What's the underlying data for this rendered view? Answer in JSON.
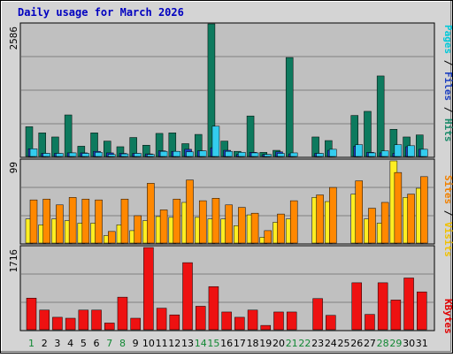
{
  "title": "Daily usage for March 2026",
  "legends": {
    "top": [
      {
        "text": "Pages",
        "color": "#00c8d8"
      },
      {
        "text": " / ",
        "color": "#000000"
      },
      {
        "text": "Files",
        "color": "#1c3fbf"
      },
      {
        "text": " / ",
        "color": "#000000"
      },
      {
        "text": "Hits",
        "color": "#1a8a6a"
      }
    ],
    "middle": [
      {
        "text": "Sites",
        "color": "#f08000"
      },
      {
        "text": " / ",
        "color": "#000000"
      },
      {
        "text": "Visits",
        "color": "#f0c000"
      }
    ],
    "bottom": [
      {
        "text": "KBytes",
        "color": "#e00000"
      }
    ]
  },
  "colors": {
    "hits": "#0d7a5e",
    "files": "#1c3fbf",
    "pages": "#33ccee",
    "visits": "#ffee22",
    "sites": "#ff8800",
    "kbytes": "#ee1111",
    "weekday_label": "#000000",
    "weekend_label": "#118833",
    "title": "#0000c0",
    "plot_bg": "#c0c0c0",
    "frame_bg": "#d4d4d4"
  },
  "chart_data": [
    {
      "type": "bar",
      "panel": "hits-files-pages",
      "max_label": "2586",
      "ylim": [
        0,
        2586
      ],
      "categories": [
        "1",
        "2",
        "3",
        "4",
        "5",
        "6",
        "7",
        "8",
        "9",
        "10",
        "11",
        "12",
        "13",
        "14",
        "15",
        "16",
        "17",
        "18",
        "19",
        "20",
        "21",
        "22",
        "23",
        "24",
        "25",
        "26",
        "27",
        "28",
        "29",
        "30",
        "31"
      ],
      "series": [
        {
          "name": "Hits",
          "values": [
            580,
            460,
            380,
            810,
            200,
            460,
            300,
            190,
            370,
            220,
            450,
            460,
            250,
            430,
            2586,
            300,
            100,
            790,
            80,
            120,
            1930,
            0,
            380,
            310,
            0,
            800,
            880,
            1570,
            530,
            380,
            420
          ]
        },
        {
          "name": "Files",
          "values": [
            150,
            60,
            60,
            70,
            70,
            100,
            70,
            60,
            60,
            50,
            110,
            100,
            140,
            110,
            170,
            120,
            40,
            80,
            40,
            90,
            50,
            0,
            60,
            120,
            0,
            200,
            80,
            70,
            60,
            190,
            140
          ]
        },
        {
          "name": "Pages",
          "values": [
            150,
            60,
            60,
            70,
            60,
            80,
            40,
            50,
            60,
            40,
            100,
            100,
            90,
            110,
            590,
            100,
            80,
            70,
            40,
            60,
            70,
            0,
            60,
            140,
            0,
            230,
            70,
            110,
            230,
            210,
            140
          ]
        }
      ]
    },
    {
      "type": "bar",
      "panel": "visits-sites",
      "max_label": "99",
      "ylim": [
        0,
        99
      ],
      "categories": [
        "1",
        "2",
        "3",
        "4",
        "5",
        "6",
        "7",
        "8",
        "9",
        "10",
        "11",
        "12",
        "13",
        "14",
        "15",
        "16",
        "17",
        "18",
        "19",
        "20",
        "21",
        "22",
        "23",
        "24",
        "25",
        "26",
        "27",
        "28",
        "29",
        "30",
        "31"
      ],
      "series": [
        {
          "name": "Visits",
          "values": [
            29,
            22,
            29,
            27,
            24,
            24,
            9,
            22,
            15,
            27,
            32,
            31,
            49,
            31,
            29,
            29,
            21,
            34,
            7,
            25,
            29,
            0,
            55,
            50,
            0,
            59,
            29,
            24,
            99,
            55,
            66
          ]
        },
        {
          "name": "Sites",
          "values": [
            52,
            53,
            46,
            55,
            53,
            52,
            14,
            53,
            33,
            72,
            40,
            53,
            76,
            51,
            54,
            46,
            43,
            36,
            15,
            35,
            51,
            0,
            58,
            67,
            0,
            75,
            42,
            49,
            85,
            59,
            80
          ]
        }
      ]
    },
    {
      "type": "bar",
      "panel": "kbytes",
      "max_label": "1716",
      "ylim": [
        0,
        1716
      ],
      "categories": [
        "1",
        "2",
        "3",
        "4",
        "5",
        "6",
        "7",
        "8",
        "9",
        "10",
        "11",
        "12",
        "13",
        "14",
        "15",
        "16",
        "17",
        "18",
        "19",
        "20",
        "21",
        "22",
        "23",
        "24",
        "25",
        "26",
        "27",
        "28",
        "29",
        "30",
        "31"
      ],
      "series": [
        {
          "name": "KBytes",
          "values": [
            660,
            410,
            260,
            240,
            410,
            410,
            140,
            680,
            240,
            1716,
            450,
            310,
            1400,
            490,
            900,
            370,
            260,
            410,
            90,
            370,
            370,
            0,
            650,
            300,
            0,
            980,
            320,
            980,
            620,
            1080,
            790
          ]
        }
      ]
    }
  ],
  "weekend_days": [
    "1",
    "7",
    "8",
    "14",
    "15",
    "21",
    "22",
    "28",
    "29"
  ]
}
